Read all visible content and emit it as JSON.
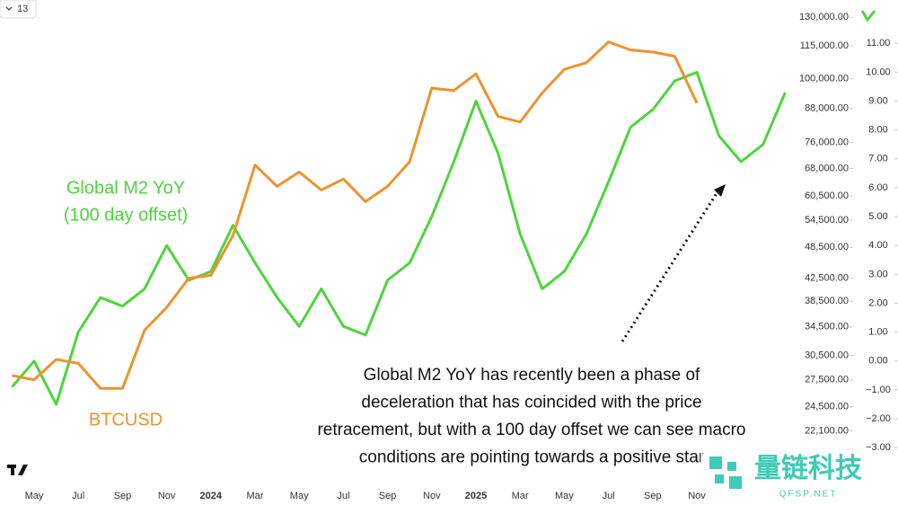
{
  "chart_data": {
    "type": "line",
    "toolbar_label": "13",
    "categories": [
      null,
      "May",
      null,
      "Jul",
      null,
      "Sep",
      null,
      "Nov",
      null,
      "2024",
      null,
      "Mar",
      null,
      "May",
      null,
      "Jul",
      null,
      "Sep",
      null,
      "Nov",
      null,
      "2025",
      null,
      "Mar",
      null,
      "May",
      null,
      "Jul",
      null,
      "Sep",
      null,
      "Nov",
      null,
      null,
      null,
      null
    ],
    "series": [
      {
        "name": "BTCUSD",
        "color": "#f0922e",
        "values": [
          28000,
          27500,
          30000,
          29500,
          26500,
          26500,
          34000,
          37500,
          42500,
          43000,
          51000,
          69000,
          63000,
          67000,
          62000,
          65000,
          59000,
          63000,
          70000,
          96000,
          95000,
          102000,
          85000,
          83000,
          94000,
          104000,
          107000,
          117000,
          113000,
          112000,
          110000,
          90000,
          null,
          null,
          null,
          null
        ]
      },
      {
        "name": "Global M2 YoY",
        "label_lines": [
          "Global M2 YoY",
          "(100 day offset)"
        ],
        "axis": "y2",
        "color": "#4cd63a",
        "values": [
          -0.9,
          0.0,
          -1.5,
          1.0,
          2.2,
          1.9,
          2.5,
          4.0,
          2.8,
          3.1,
          4.7,
          3.4,
          2.2,
          1.2,
          2.5,
          1.2,
          0.9,
          2.8,
          3.4,
          5.0,
          6.9,
          9.0,
          7.2,
          4.4,
          2.5,
          3.1,
          4.4,
          6.2,
          8.1,
          8.7,
          9.7,
          10.0,
          7.8,
          6.9,
          7.5,
          9.3
        ]
      }
    ],
    "log_scale": true,
    "ylim": [
      17500,
      140000
    ],
    "yticks": [
      {
        "value": 130000,
        "label": "130,000.00"
      },
      {
        "value": 115000,
        "label": "115,000.00"
      },
      {
        "value": 100000,
        "label": "100,000.00"
      },
      {
        "value": 88000,
        "label": "88,000.00"
      },
      {
        "value": 76000,
        "label": "76,000.00"
      },
      {
        "value": 68000,
        "label": "68,000.00"
      },
      {
        "value": 60500,
        "label": "60,500.00"
      },
      {
        "value": 54500,
        "label": "54,500.00"
      },
      {
        "value": 48500,
        "label": "48,500.00"
      },
      {
        "value": 42500,
        "label": "42,500.00"
      },
      {
        "value": 38500,
        "label": "38,500.00"
      },
      {
        "value": 34500,
        "label": "34,500.00"
      },
      {
        "value": 30500,
        "label": "30,500.00"
      },
      {
        "value": 27500,
        "label": "27,500.00"
      },
      {
        "value": 24500,
        "label": "24,500.00"
      },
      {
        "value": 22100,
        "label": "22,100.00"
      }
    ],
    "y2lim": [
      -4.3,
      12.5
    ],
    "y2ticks": [
      {
        "value": 11,
        "label": "11.00"
      },
      {
        "value": 10,
        "label": "10.00"
      },
      {
        "value": 9,
        "label": "9.00"
      },
      {
        "value": 8,
        "label": "8.00"
      },
      {
        "value": 7,
        "label": "7.00"
      },
      {
        "value": 6,
        "label": "6.00"
      },
      {
        "value": 5,
        "label": "5.00"
      },
      {
        "value": 4,
        "label": "4.00"
      },
      {
        "value": 3,
        "label": "3.00"
      },
      {
        "value": 2,
        "label": "2.00"
      },
      {
        "value": 1,
        "label": "1.00"
      },
      {
        "value": 0,
        "label": "0.00"
      },
      {
        "value": -1,
        "label": "−1.00"
      },
      {
        "value": -2,
        "label": "−2.00"
      },
      {
        "value": -3,
        "label": "−3.00"
      }
    ],
    "annotation_lines": [
      "Global M2 YoY has recently been a phase of",
      "deceleration that has coincided with the price",
      "retracement, but with a 100 day offset we can see macro",
      "conditions are pointing towards a positive star"
    ],
    "watermark": {
      "title": "量链科技",
      "subtitle": "QFSP.NET"
    }
  }
}
